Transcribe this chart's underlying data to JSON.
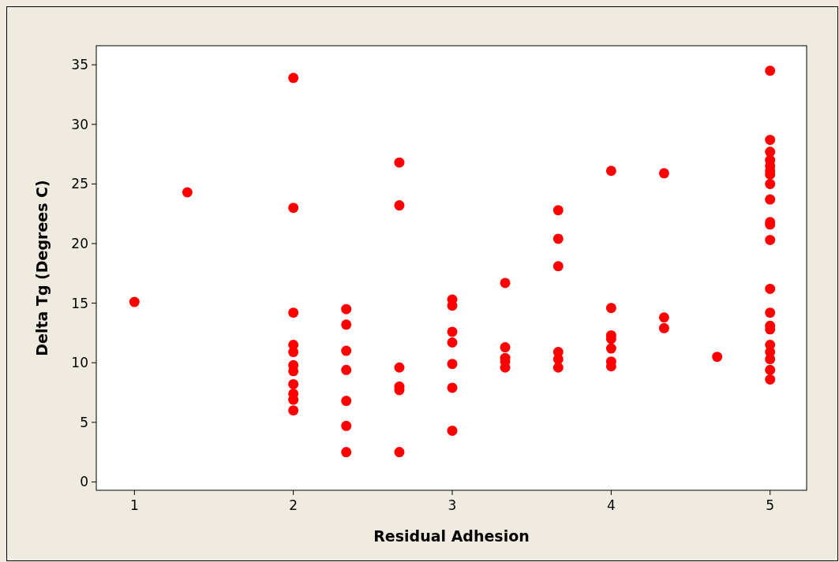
{
  "chart_data": {
    "type": "scatter",
    "xlabel": "Residual Adhesion",
    "ylabel": "Delta Tg (Degrees C)",
    "marker": "circle",
    "grid": false,
    "xlim": [
      0.76,
      5.23
    ],
    "xticks": [
      1,
      2,
      3,
      4,
      5
    ],
    "ylim": [
      -0.7,
      36.6
    ],
    "yticks": [
      0,
      5,
      10,
      15,
      20,
      25,
      30,
      35
    ],
    "series": [
      {
        "color": "#ff0000",
        "x": [
          1,
          1.333,
          2,
          2,
          2,
          2,
          2,
          2,
          2,
          2,
          2,
          2,
          2,
          2.333,
          2.333,
          2.333,
          2.333,
          2.333,
          2.333,
          2.333,
          2.667,
          2.667,
          2.667,
          2.667,
          2.667,
          2.667,
          3,
          3,
          3,
          3,
          3,
          3,
          3,
          3.333,
          3.333,
          3.333,
          3.333,
          3.333,
          3.667,
          3.667,
          3.667,
          3.667,
          3.667,
          3.667,
          4,
          4,
          4,
          4,
          4,
          4,
          4,
          4.333,
          4.333,
          4.333,
          4.667,
          5,
          5,
          5,
          5,
          5,
          5,
          5,
          5,
          5,
          5,
          5,
          5,
          5,
          5,
          5,
          5,
          5,
          5,
          5,
          5,
          5
        ],
        "values": [
          15.1,
          24.3,
          33.9,
          23.0,
          14.2,
          11.5,
          10.9,
          9.8,
          9.3,
          8.2,
          7.4,
          6.9,
          6.0,
          14.5,
          13.2,
          11.0,
          9.4,
          6.8,
          4.7,
          2.5,
          26.8,
          23.2,
          9.6,
          8.0,
          7.7,
          2.5,
          15.3,
          14.8,
          12.6,
          11.7,
          9.9,
          7.9,
          4.3,
          16.7,
          11.3,
          10.4,
          10.1,
          9.6,
          22.8,
          20.4,
          18.1,
          10.9,
          10.3,
          9.6,
          26.1,
          14.6,
          12.3,
          12.0,
          11.2,
          10.1,
          9.7,
          25.9,
          13.8,
          12.9,
          10.5,
          34.5,
          28.7,
          27.7,
          27.0,
          26.5,
          26.1,
          25.8,
          25.0,
          23.7,
          21.8,
          21.6,
          20.3,
          16.2,
          14.2,
          13.1,
          12.8,
          11.5,
          10.9,
          10.3,
          9.4,
          8.6
        ]
      }
    ]
  }
}
